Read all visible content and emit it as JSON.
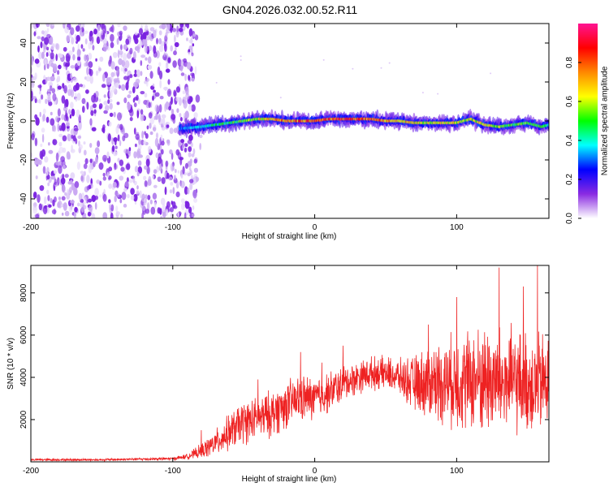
{
  "figure": {
    "title": "GN04.2026.032.00.52.R11"
  },
  "colors": {
    "snr_line": "#ee2222",
    "noise_purple": "#7a22e0",
    "noise_light": "#c9a8f2",
    "axis": "#000000"
  },
  "chart_data": [
    {
      "type": "heatmap",
      "id": "spectrogram",
      "xlabel": "Height of straight line (km)",
      "ylabel": "Frequency (Hz)",
      "xlim": [
        -200,
        165
      ],
      "ylim": [
        -50,
        50
      ],
      "x_ticks": [
        -200,
        -100,
        0,
        100
      ],
      "y_ticks": [
        -40,
        -20,
        0,
        20,
        40
      ],
      "colorbar": {
        "label": "Normalized spectral amplitude",
        "range": [
          0,
          1
        ],
        "ticks": [
          0.0,
          0.2,
          0.4,
          0.6,
          0.8
        ],
        "tick_labels": [
          "0.0",
          "0.2",
          "0.4",
          "0.6",
          "0.8"
        ],
        "colormap": [
          "#ffffff",
          "#8a2be2",
          "#0000ff",
          "#00ffff",
          "#00ff00",
          "#ffff00",
          "#ff8800",
          "#ff0000",
          "#ff1493"
        ]
      },
      "noise_region_x": [
        -200,
        -83
      ],
      "signal_track": {
        "x": [
          -95,
          -80,
          -60,
          -40,
          -30,
          -20,
          -10,
          0,
          10,
          20,
          30,
          40,
          50,
          60,
          70,
          80,
          90,
          100,
          110,
          120,
          130,
          140,
          150,
          160,
          165
        ],
        "frequency": [
          -4,
          -3,
          -1,
          1,
          1,
          0,
          0,
          0,
          1,
          1,
          1,
          1,
          0,
          0,
          -1,
          -1,
          -1,
          -1,
          1,
          -2,
          -3,
          -2,
          -1,
          -3,
          -2
        ],
        "peak_amplitude": [
          0.35,
          0.45,
          0.55,
          0.7,
          0.8,
          0.85,
          0.9,
          0.95,
          0.95,
          0.95,
          0.9,
          0.9,
          0.85,
          0.8,
          0.75,
          0.7,
          0.75,
          0.7,
          0.7,
          0.75,
          0.65,
          0.6,
          0.6,
          0.55,
          0.5
        ]
      }
    },
    {
      "type": "line",
      "id": "snr",
      "xlabel": "Height of straight line (km)",
      "ylabel": "SNR (10 * v/v)",
      "xlim": [
        -200,
        165
      ],
      "ylim": [
        0,
        9300
      ],
      "x_ticks": [
        -200,
        -100,
        0,
        100
      ],
      "y_ticks": [
        2000,
        4000,
        6000,
        8000
      ],
      "series": [
        {
          "name": "SNR",
          "x": [
            -200,
            -150,
            -100,
            -90,
            -80,
            -70,
            -60,
            -50,
            -40,
            -30,
            -20,
            -10,
            0,
            10,
            20,
            30,
            40,
            50,
            60,
            70,
            80,
            90,
            100,
            110,
            120,
            130,
            140,
            150,
            160,
            165
          ],
          "mean": [
            100,
            100,
            150,
            250,
            500,
            900,
            1400,
            1900,
            2000,
            2300,
            2700,
            3000,
            3000,
            3300,
            3700,
            4000,
            4200,
            4200,
            4000,
            3700,
            3800,
            3800,
            3800,
            3900,
            3900,
            3800,
            3800,
            3700,
            3700,
            3900
          ],
          "spread": [
            60,
            60,
            80,
            150,
            400,
            700,
            1000,
            1200,
            1200,
            1300,
            1300,
            1300,
            1200,
            1100,
            1000,
            900,
            900,
            900,
            1000,
            1500,
            2000,
            2300,
            2600,
            2800,
            3000,
            3000,
            2900,
            2800,
            2800,
            2800
          ],
          "peaks": [
            [
              -40,
              3900
            ],
            [
              -80,
              1500
            ],
            [
              -10,
              5200
            ],
            [
              5,
              4700
            ],
            [
              20,
              5500
            ],
            [
              80,
              6500
            ],
            [
              100,
              7800
            ],
            [
              130,
              9200
            ],
            [
              157,
              9300
            ],
            [
              147,
              8300
            ]
          ]
        }
      ]
    }
  ]
}
